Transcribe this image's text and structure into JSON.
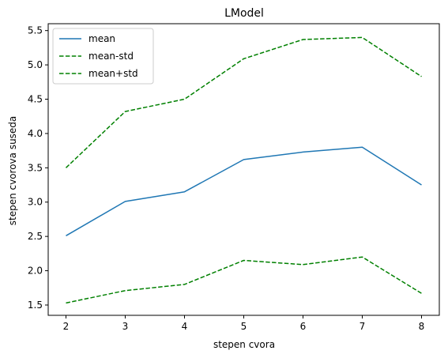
{
  "chart_data": {
    "type": "line",
    "title": "LModel",
    "xlabel": "stepen cvora",
    "ylabel": "stepen cvorova suseda",
    "x": [
      2,
      3,
      4,
      5,
      6,
      7,
      8
    ],
    "xlim": [
      1.7,
      8.3
    ],
    "ylim": [
      1.35,
      5.6
    ],
    "xticks": [
      2,
      3,
      4,
      5,
      6,
      7,
      8
    ],
    "yticks": [
      1.5,
      2.0,
      2.5,
      3.0,
      3.5,
      4.0,
      4.5,
      5.0,
      5.5
    ],
    "ytick_labels": [
      "1.5",
      "2.0",
      "2.5",
      "3.0",
      "3.5",
      "4.0",
      "4.5",
      "5.0",
      "5.5"
    ],
    "grid": false,
    "legend_position": "top-left",
    "series": [
      {
        "name": "mean",
        "color": "#1f77b4",
        "style": "solid",
        "values": [
          2.51,
          3.01,
          3.15,
          3.62,
          3.73,
          3.8,
          3.25
        ]
      },
      {
        "name": "mean-std",
        "color": "#008000",
        "style": "dashed",
        "values": [
          1.53,
          1.71,
          1.8,
          2.15,
          2.09,
          2.2,
          1.67
        ]
      },
      {
        "name": "mean+std",
        "color": "#008000",
        "style": "dashed",
        "values": [
          3.5,
          4.32,
          4.5,
          5.09,
          5.37,
          5.4,
          4.83
        ]
      }
    ]
  }
}
